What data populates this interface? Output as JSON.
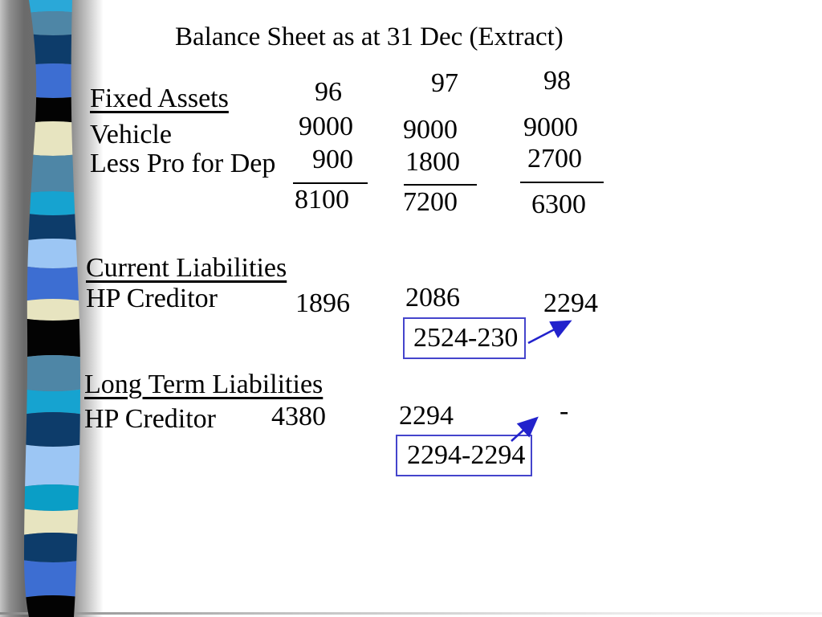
{
  "slide_title": "Balance Sheet as at 31 Dec (Extract)",
  "columns": [
    {
      "label": "96"
    },
    {
      "label": "97"
    },
    {
      "label": "98"
    }
  ],
  "sections": {
    "fixed_assets": {
      "heading": "Fixed Assets",
      "rows": [
        {
          "label": "Vehicle",
          "values": [
            "9000",
            "9000",
            "9000"
          ]
        },
        {
          "label": "Less Pro for Dep",
          "values": [
            "900",
            "1800",
            "2700"
          ]
        }
      ],
      "totals": [
        "8100",
        "7200",
        "6300"
      ]
    },
    "current_liabilities": {
      "heading": "Current Liabilities",
      "rows": [
        {
          "label": "HP Creditor",
          "values": [
            "1896",
            "2086",
            "2294"
          ]
        }
      ],
      "callout": "2524-230"
    },
    "long_term_liabilities": {
      "heading": "Long Term Liabilities",
      "rows": [
        {
          "label": "HP Creditor",
          "values": [
            "4380",
            "2294",
            "-"
          ]
        }
      ],
      "callout": "2294-2294"
    }
  },
  "colors": {
    "text": "#000000",
    "callout_border": "#4545cc",
    "arrow": "#2222cc"
  },
  "ribbon_stripes": [
    {
      "color": "#2aa8d8",
      "from": 0,
      "to": 14
    },
    {
      "color": "#4e86a6",
      "from": 14,
      "to": 44
    },
    {
      "color": "#0d3c6a",
      "from": 44,
      "to": 79
    },
    {
      "color": "#3d6ed2",
      "from": 79,
      "to": 122
    },
    {
      "color": "#030303",
      "from": 122,
      "to": 151
    },
    {
      "color": "#e7e4c0",
      "from": 151,
      "to": 194
    },
    {
      "color": "#4e86a6",
      "from": 194,
      "to": 238
    },
    {
      "color": "#16a3d0",
      "from": 238,
      "to": 268
    },
    {
      "color": "#0d3c6a",
      "from": 268,
      "to": 297
    },
    {
      "color": "#9cc6f4",
      "from": 297,
      "to": 334
    },
    {
      "color": "#3d6ed2",
      "from": 334,
      "to": 372
    },
    {
      "color": "#e7e4c0",
      "from": 372,
      "to": 399
    },
    {
      "color": "#030303",
      "from": 399,
      "to": 442
    },
    {
      "color": "#4e86a6",
      "from": 442,
      "to": 487
    },
    {
      "color": "#16a3d0",
      "from": 487,
      "to": 513
    },
    {
      "color": "#0d3c6a",
      "from": 513,
      "to": 556
    },
    {
      "color": "#9cc6f4",
      "from": 556,
      "to": 603
    },
    {
      "color": "#0a9ec6",
      "from": 603,
      "to": 636
    },
    {
      "color": "#e7e4c0",
      "from": 636,
      "to": 663
    },
    {
      "color": "#0d3c6a",
      "from": 663,
      "to": 700
    },
    {
      "color": "#3d6ed2",
      "from": 700,
      "to": 741
    },
    {
      "color": "#030303",
      "from": 741,
      "to": 768
    }
  ]
}
